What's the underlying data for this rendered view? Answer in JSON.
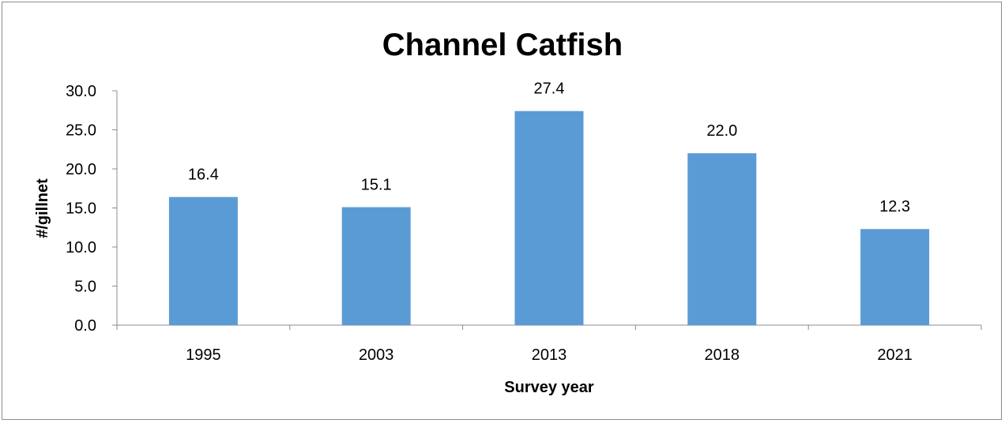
{
  "chart_data": {
    "type": "bar",
    "title": "Channel Catfish",
    "xlabel": "Survey year",
    "ylabel": "#/gillnet",
    "categories": [
      "1995",
      "2003",
      "2013",
      "2018",
      "2021"
    ],
    "values": [
      16.4,
      15.1,
      27.4,
      22.0,
      12.3
    ],
    "data_labels": [
      "16.4",
      "15.1",
      "27.4",
      "22.0",
      "12.3"
    ],
    "ylim": [
      0,
      30
    ],
    "yticks": [
      "0.0",
      "5.0",
      "10.0",
      "15.0",
      "20.0",
      "25.0",
      "30.0"
    ],
    "grid": false,
    "legend": "none",
    "bar_color": "#5b9bd5"
  }
}
